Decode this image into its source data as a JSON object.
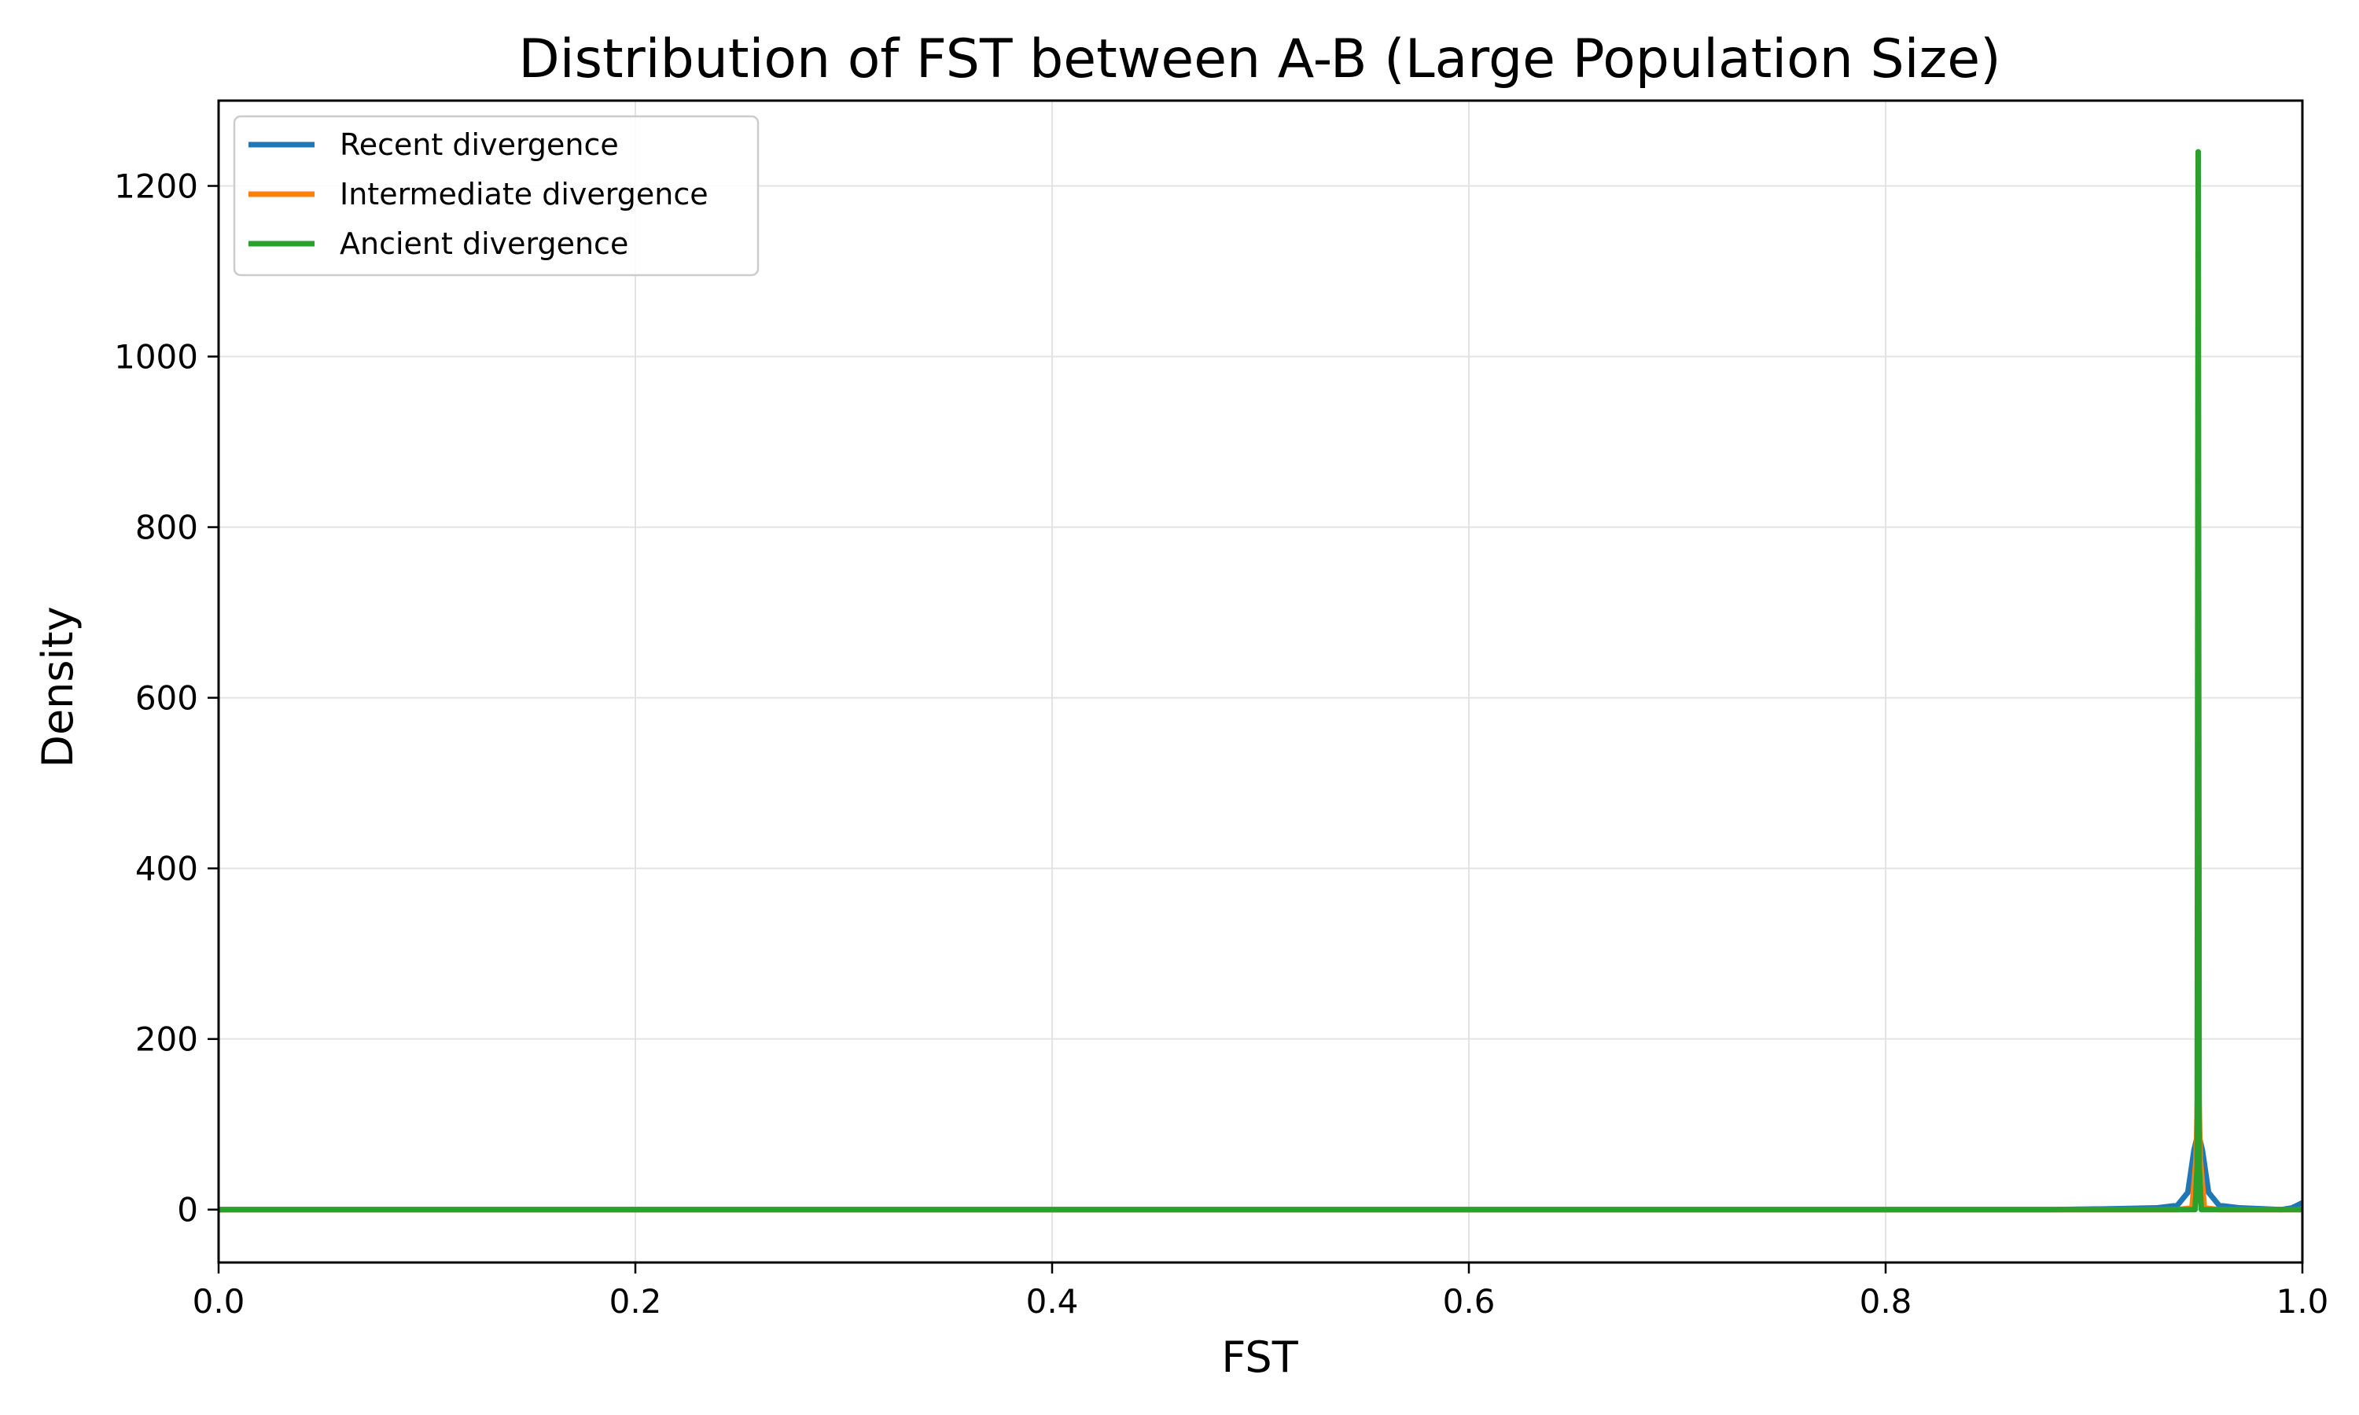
{
  "chart_data": {
    "type": "line",
    "title": "Distribution of FST between A-B (Large Population Size)",
    "xlabel": "FST",
    "ylabel": "Density",
    "xlim": [
      0.0,
      1.0
    ],
    "ylim": [
      -62,
      1300
    ],
    "x_ticks": [
      "0.0",
      "0.2",
      "0.4",
      "0.6",
      "0.8",
      "1.0"
    ],
    "y_ticks": [
      "0",
      "200",
      "400",
      "600",
      "800",
      "1000",
      "1200"
    ],
    "grid": true,
    "legend_position": "top-left",
    "series": [
      {
        "name": "Recent divergence",
        "color": "#1f77b4",
        "x": [
          0.0,
          0.88,
          0.91,
          0.93,
          0.94,
          0.945,
          0.948,
          0.95,
          0.952,
          0.955,
          0.96,
          0.97,
          0.98,
          0.99,
          0.995,
          1.0
        ],
        "y": [
          0,
          0,
          1,
          2,
          5,
          20,
          70,
          90,
          70,
          20,
          5,
          2,
          1,
          0,
          2,
          8
        ]
      },
      {
        "name": "Intermediate divergence",
        "color": "#ff7f0e",
        "x": [
          0.0,
          0.94,
          0.947,
          0.949,
          0.95,
          0.951,
          0.953,
          0.96,
          1.0
        ],
        "y": [
          0,
          0,
          2,
          60,
          170,
          60,
          2,
          0,
          0
        ]
      },
      {
        "name": "Ancient divergence",
        "color": "#2ca02c",
        "x": [
          0.0,
          0.9485,
          0.9495,
          0.95,
          0.9505,
          0.9515,
          1.0
        ],
        "y": [
          0,
          0,
          50,
          1240,
          50,
          0,
          0
        ]
      }
    ]
  }
}
